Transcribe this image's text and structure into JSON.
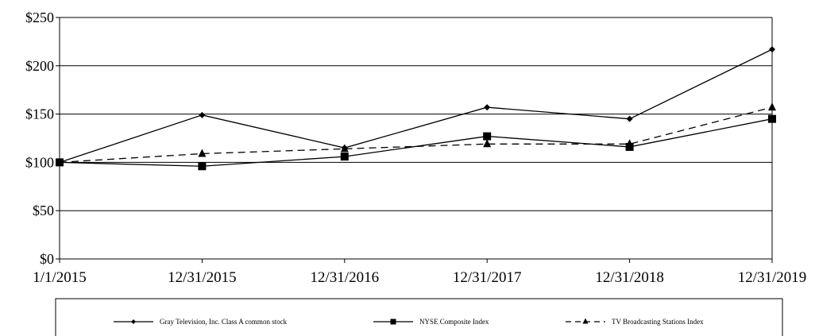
{
  "chart_data": {
    "type": "line",
    "title": "",
    "xlabel": "",
    "ylabel": "",
    "categories": [
      "1/1/2015",
      "12/31/2015",
      "12/31/2016",
      "12/31/2017",
      "12/31/2018",
      "12/31/2019"
    ],
    "ylim": [
      0,
      250
    ],
    "yticks": [
      0,
      50,
      100,
      150,
      200,
      250
    ],
    "ytick_labels": [
      "$0",
      "$50",
      "$100",
      "$150",
      "$200",
      "$250"
    ],
    "grid": "horizontal",
    "legend_position": "bottom",
    "series": [
      {
        "name": "Gray Television, Inc. Class A common stock",
        "values": [
          100,
          149,
          115,
          157,
          145,
          217
        ],
        "marker": "diamond",
        "line_style": "solid",
        "color": "#000000"
      },
      {
        "name": "NYSE Composite Index",
        "values": [
          100,
          96,
          106,
          127,
          116,
          145
        ],
        "marker": "square",
        "line_style": "solid",
        "color": "#000000"
      },
      {
        "name": "TV Broadcasting Stations Index",
        "values": [
          100,
          109,
          114,
          119,
          119,
          157
        ],
        "marker": "triangle",
        "line_style": "dashed",
        "color": "#000000"
      }
    ]
  }
}
